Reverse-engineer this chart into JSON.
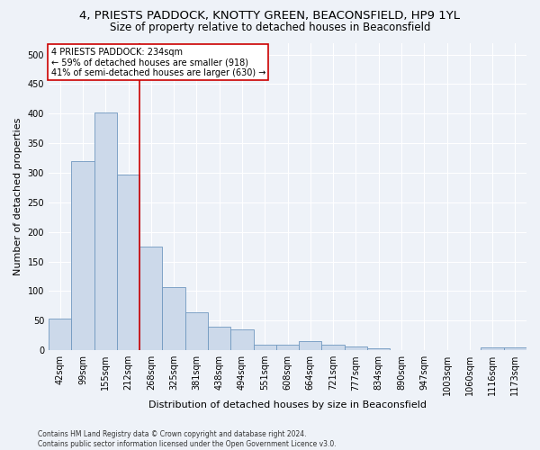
{
  "title_line1": "4, PRIESTS PADDOCK, KNOTTY GREEN, BEACONSFIELD, HP9 1YL",
  "title_line2": "Size of property relative to detached houses in Beaconsfield",
  "xlabel": "Distribution of detached houses by size in Beaconsfield",
  "ylabel": "Number of detached properties",
  "footnote": "Contains HM Land Registry data © Crown copyright and database right 2024.\nContains public sector information licensed under the Open Government Licence v3.0.",
  "bar_labels": [
    "42sqm",
    "99sqm",
    "155sqm",
    "212sqm",
    "268sqm",
    "325sqm",
    "381sqm",
    "438sqm",
    "494sqm",
    "551sqm",
    "608sqm",
    "664sqm",
    "721sqm",
    "777sqm",
    "834sqm",
    "890sqm",
    "947sqm",
    "1003sqm",
    "1060sqm",
    "1116sqm",
    "1173sqm"
  ],
  "bar_values": [
    53,
    320,
    402,
    297,
    176,
    107,
    64,
    40,
    36,
    10,
    10,
    15,
    9,
    6,
    3,
    0,
    0,
    0,
    0,
    5,
    5
  ],
  "bar_color": "#ccd9ea",
  "bar_edge_color": "#7098c0",
  "property_line_x": 3.5,
  "property_line_label": "4 PRIESTS PADDOCK: 234sqm",
  "annotation_line2": "← 59% of detached houses are smaller (918)",
  "annotation_line3": "41% of semi-detached houses are larger (630) →",
  "annotation_box_color": "#ffffff",
  "annotation_box_edge": "#cc0000",
  "vline_color": "#cc0000",
  "ylim": [
    0,
    520
  ],
  "yticks": [
    0,
    50,
    100,
    150,
    200,
    250,
    300,
    350,
    400,
    450,
    500
  ],
  "bg_color": "#eef2f8",
  "grid_color": "#ffffff",
  "title_fontsize": 9.5,
  "subtitle_fontsize": 8.5,
  "tick_fontsize": 7,
  "label_fontsize": 8,
  "footnote_fontsize": 5.5,
  "annotation_fontsize": 7
}
